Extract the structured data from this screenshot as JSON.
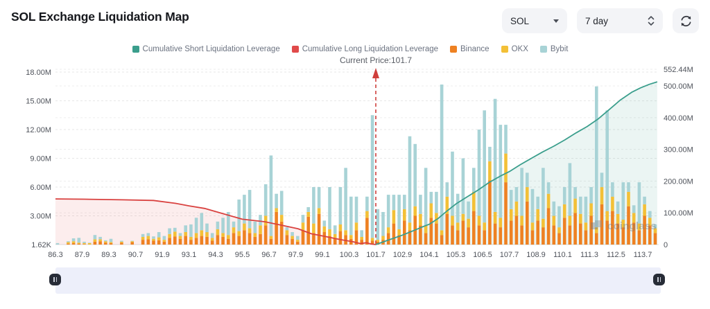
{
  "header": {
    "title": "SOL Exchange Liquidation Map"
  },
  "controls": {
    "symbol_select": {
      "value": "SOL",
      "icon": "caret-down-icon"
    },
    "period_select": {
      "value": "7 day",
      "icon": "up-down-chevrons-icon"
    },
    "refresh_button": {
      "icon": "refresh-icon"
    }
  },
  "legend": {
    "items": [
      {
        "label": "Cumulative Short Liquidation Leverage",
        "color": "#3a9e8c"
      },
      {
        "label": "Cumulative Long Liquidation Leverage",
        "color": "#e04a4a"
      },
      {
        "label": "Binance",
        "color": "#ee8122"
      },
      {
        "label": "OKX",
        "color": "#f3c037"
      },
      {
        "label": "Bybit",
        "color": "#a8d3d6"
      }
    ]
  },
  "current_price_label": "Current Price:101.7",
  "watermark": {
    "text": "coinglass"
  },
  "chart_data": {
    "type": "bar",
    "title": "SOL Exchange Liquidation Map",
    "current_price": 101.7,
    "left_axis": {
      "unit": "M",
      "ticks": [
        {
          "label": "1.62K",
          "value": 0
        },
        {
          "label": "3.00M",
          "value": 3
        },
        {
          "label": "6.00M",
          "value": 6
        },
        {
          "label": "9.00M",
          "value": 9
        },
        {
          "label": "12.00M",
          "value": 12
        },
        {
          "label": "15.00M",
          "value": 15
        },
        {
          "label": "18.00M",
          "value": 18
        }
      ],
      "max": 18
    },
    "right_axis": {
      "unit": "M",
      "ticks": [
        {
          "label": "0",
          "value": 0
        },
        {
          "label": "100.00M",
          "value": 100
        },
        {
          "label": "200.00M",
          "value": 200
        },
        {
          "label": "300.00M",
          "value": 300
        },
        {
          "label": "400.00M",
          "value": 400
        },
        {
          "label": "500.00M",
          "value": 500
        },
        {
          "label": "552.44M",
          "value": 552.44
        }
      ],
      "max": 552.44
    },
    "x_axis": {
      "tick_labels": [
        "86.3",
        "87.9",
        "89.3",
        "90.7",
        "91.9",
        "93.1",
        "94.3",
        "95.5",
        "96.7",
        "97.9",
        "99.1",
        "100.3",
        "101.7",
        "102.9",
        "104.1",
        "105.3",
        "106.5",
        "107.7",
        "108.9",
        "110.1",
        "111.3",
        "112.5",
        "113.7"
      ],
      "tick_values": [
        86.3,
        87.9,
        89.3,
        90.7,
        91.9,
        93.1,
        94.3,
        95.5,
        96.7,
        97.9,
        99.1,
        100.3,
        101.7,
        102.9,
        104.1,
        105.3,
        106.5,
        107.7,
        108.9,
        110.1,
        111.3,
        112.5,
        113.7
      ]
    },
    "bars": {
      "series_order": [
        "Binance",
        "OKX",
        "Bybit"
      ],
      "colors": {
        "Binance": "#ee8122",
        "OKX": "#f3c037",
        "Bybit": "#a8d3d6"
      },
      "unit": "M",
      "price_range": [
        86.1,
        114.2
      ],
      "values": [
        [
          0,
          0,
          0.15
        ],
        [
          0,
          0,
          0
        ],
        [
          0.1,
          0.15,
          0.1
        ],
        [
          0.15,
          0.2,
          0.3
        ],
        [
          0.1,
          0.1,
          0.5
        ],
        [
          0.05,
          0.1,
          0.15
        ],
        [
          0,
          0.15,
          0.05
        ],
        [
          0.3,
          0.25,
          0.45
        ],
        [
          0.35,
          0.2,
          0.25
        ],
        [
          0.2,
          0.15,
          0.1
        ],
        [
          0.15,
          0.1,
          0.35
        ],
        [
          0,
          0,
          0
        ],
        [
          0.2,
          0.1,
          0.1
        ],
        [
          0,
          0,
          0
        ],
        [
          0.25,
          0.1,
          0.05
        ],
        [
          0,
          0,
          0
        ],
        [
          0.5,
          0.3,
          0.3
        ],
        [
          0.55,
          0.35,
          0.3
        ],
        [
          0.4,
          0.2,
          0.25
        ],
        [
          0.45,
          0.3,
          0.55
        ],
        [
          0.3,
          0.2,
          0.4
        ],
        [
          0.7,
          0.4,
          0.6
        ],
        [
          0.85,
          0.5,
          0.4
        ],
        [
          0.6,
          0.3,
          0.3
        ],
        [
          0.9,
          0.4,
          0.7
        ],
        [
          0.5,
          0.3,
          1.3
        ],
        [
          0.7,
          0.5,
          1.6
        ],
        [
          0.9,
          0.6,
          1.8
        ],
        [
          0.8,
          0.5,
          0.9
        ],
        [
          0.4,
          0.3,
          0.5
        ],
        [
          1,
          0.6,
          0.8
        ],
        [
          0.8,
          0.4,
          1.6
        ],
        [
          0.6,
          0.4,
          2.4
        ],
        [
          1.2,
          0.6,
          0.6
        ],
        [
          0.9,
          0.5,
          3.3
        ],
        [
          1.5,
          0.7,
          3
        ],
        [
          1.2,
          0.5,
          4
        ],
        [
          0.8,
          0.4,
          1.2
        ],
        [
          1.1,
          0.9,
          1.1
        ],
        [
          2,
          1,
          3.3
        ],
        [
          0.6,
          0.3,
          8.4
        ],
        [
          3.4,
          0.4,
          1.5
        ],
        [
          2.4,
          0.7,
          2.5
        ],
        [
          1,
          0.5,
          0.3
        ],
        [
          0.6,
          0.3,
          0.4
        ],
        [
          0.3,
          0.2,
          0.4
        ],
        [
          1.5,
          0.8,
          0.8
        ],
        [
          2.9,
          0.5,
          0.5
        ],
        [
          1.2,
          1,
          3.8
        ],
        [
          3.2,
          0.6,
          2.2
        ],
        [
          1.3,
          0.6,
          0.6
        ],
        [
          0.9,
          0.7,
          4.4
        ],
        [
          0.7,
          0.4,
          0.9
        ],
        [
          1.4,
          0.7,
          3.9
        ],
        [
          1,
          0.5,
          6.5
        ],
        [
          0.6,
          0.4,
          4
        ],
        [
          1.5,
          0.8,
          2.7
        ],
        [
          0.5,
          0.3,
          0.7
        ],
        [
          2.8,
          0.7,
          1.5
        ],
        [
          0.4,
          0.3,
          12.8
        ],
        [
          0.3,
          0.2,
          3.2
        ],
        [
          0.5,
          0.4,
          2.5
        ],
        [
          1.2,
          0.6,
          3.4
        ],
        [
          2.2,
          1.4,
          1.6
        ],
        [
          1,
          0.6,
          3.6
        ],
        [
          2.5,
          1.2,
          1.5
        ],
        [
          1.5,
          0.8,
          9
        ],
        [
          3,
          1,
          6.5
        ],
        [
          2,
          1.2,
          2
        ],
        [
          1.2,
          0.8,
          6
        ],
        [
          2.8,
          1.5,
          1.2
        ],
        [
          2.2,
          1.1,
          2.2
        ],
        [
          1,
          0.5,
          15.2
        ],
        [
          3.2,
          1.8,
          1.5
        ],
        [
          2,
          1,
          6.7
        ],
        [
          1.5,
          0.8,
          3
        ],
        [
          2.5,
          0.7,
          5.8
        ],
        [
          1.8,
          0.9,
          1.8
        ],
        [
          3.5,
          2,
          2.5
        ],
        [
          2,
          1,
          9
        ],
        [
          1.5,
          0.8,
          11.7
        ],
        [
          6.7,
          2,
          1.5
        ],
        [
          2.2,
          1.2,
          11.8
        ],
        [
          1.8,
          1,
          9.7
        ],
        [
          6.5,
          3,
          3
        ],
        [
          2.5,
          1.2,
          2
        ],
        [
          3,
          1.5,
          1.5
        ],
        [
          2,
          1,
          5
        ],
        [
          4.5,
          1.5,
          1.5
        ],
        [
          1.5,
          0.8,
          3.5
        ],
        [
          2.5,
          1.2,
          1.3
        ],
        [
          1.8,
          0.9,
          5.3
        ],
        [
          3.8,
          1.5,
          1.2
        ],
        [
          2,
          1,
          1.5
        ],
        [
          1.2,
          0.6,
          2.2
        ],
        [
          2.8,
          1.4,
          1.8
        ],
        [
          2,
          1,
          5.5
        ],
        [
          3.3,
          1.5,
          1.2
        ],
        [
          2.2,
          1,
          1.8
        ],
        [
          1.5,
          0.8,
          2.7
        ],
        [
          3,
          1.3,
          1.7
        ],
        [
          1.2,
          0.6,
          14.7
        ],
        [
          4.2,
          1.8,
          1.5
        ],
        [
          2.5,
          1,
          10.5
        ],
        [
          3.5,
          1.5,
          1.5
        ],
        [
          2.2,
          1,
          1.3
        ],
        [
          1.8,
          0.8,
          3.9
        ],
        [
          4,
          1.5,
          1
        ],
        [
          2.3,
          1,
          0.8
        ],
        [
          1.5,
          0.7,
          4.3
        ],
        [
          3,
          1.2,
          0.8
        ],
        [
          2,
          0.8,
          0.7
        ],
        [
          1.2,
          0.5,
          0.4
        ]
      ]
    },
    "series": [
      {
        "name": "Cumulative Long Liquidation Leverage",
        "type": "line",
        "axis": "right",
        "color": "#d9413f",
        "fill": "rgba(224,75,75,0.10)",
        "points": [
          [
            86.05,
            144
          ],
          [
            88,
            143
          ],
          [
            90,
            141
          ],
          [
            91.5,
            139
          ],
          [
            92.5,
            130
          ],
          [
            93.1,
            122
          ],
          [
            93.8,
            114
          ],
          [
            94.6,
            98
          ],
          [
            95.5,
            80
          ],
          [
            96.5,
            72
          ],
          [
            97.2,
            62
          ],
          [
            98,
            50
          ],
          [
            98.6,
            34
          ],
          [
            99.2,
            26
          ],
          [
            99.9,
            16
          ],
          [
            100.5,
            9
          ],
          [
            100.9,
            3
          ],
          [
            101.2,
            6
          ],
          [
            101.45,
            2
          ],
          [
            101.7,
            0
          ]
        ]
      },
      {
        "name": "Cumulative Short Liquidation Leverage",
        "type": "line",
        "axis": "right",
        "color": "#3a9e8c",
        "fill": "rgba(58,158,140,0.10)",
        "points": [
          [
            101.7,
            0
          ],
          [
            102.1,
            10
          ],
          [
            102.5,
            20
          ],
          [
            102.9,
            30
          ],
          [
            103.4,
            44
          ],
          [
            103.8,
            56
          ],
          [
            104.1,
            64
          ],
          [
            104.5,
            82
          ],
          [
            104.9,
            106
          ],
          [
            105.3,
            128
          ],
          [
            105.8,
            150
          ],
          [
            106.3,
            172
          ],
          [
            106.8,
            196
          ],
          [
            107.3,
            216
          ],
          [
            107.7,
            230
          ],
          [
            108.2,
            252
          ],
          [
            108.7,
            272
          ],
          [
            109.2,
            292
          ],
          [
            109.7,
            310
          ],
          [
            110.2,
            330
          ],
          [
            110.7,
            352
          ],
          [
            111.2,
            372
          ],
          [
            111.7,
            396
          ],
          [
            112.2,
            426
          ],
          [
            112.7,
            456
          ],
          [
            113.2,
            480
          ],
          [
            113.6,
            494
          ],
          [
            114,
            505
          ],
          [
            114.35,
            513
          ]
        ]
      }
    ],
    "marker": {
      "label": "Current Price:101.7",
      "price": 101.7,
      "color": "#cf3f3c"
    },
    "grid": "dashed-horizontal",
    "legend_position": "top-center"
  },
  "colors": {
    "control_bg": "#f3f4f7",
    "slider_track": "#edeffa",
    "slider_handle": "#272c37",
    "axis_text": "#4e525a",
    "title_text": "#15171c"
  }
}
